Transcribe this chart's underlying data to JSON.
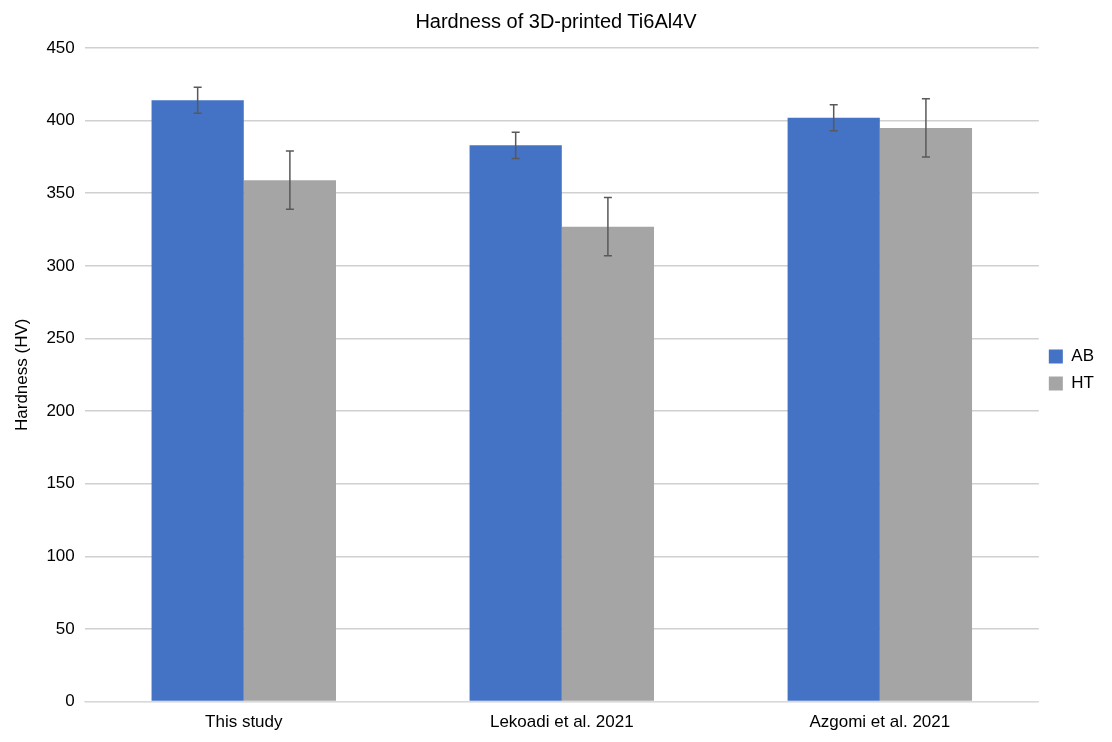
{
  "chart_data": {
    "type": "bar",
    "title": "Hardness of 3D-printed Ti6Al4V",
    "ylabel": "Hardness (HV)",
    "categories": [
      "This study",
      "Lekoadi et al. 2021",
      "Azgomi et al. 2021"
    ],
    "series": [
      {
        "name": "AB",
        "color": "#4472c4",
        "values": [
          414,
          383,
          402
        ],
        "errors": [
          9,
          9,
          9
        ]
      },
      {
        "name": "HT",
        "color": "#a5a5a5",
        "values": [
          359,
          327,
          395
        ],
        "errors": [
          20,
          20,
          20
        ]
      }
    ],
    "ylim": [
      0,
      450
    ],
    "yticks": [
      0,
      50,
      100,
      150,
      200,
      250,
      300,
      350,
      400,
      450
    ],
    "grid": "y",
    "legend": "right"
  }
}
